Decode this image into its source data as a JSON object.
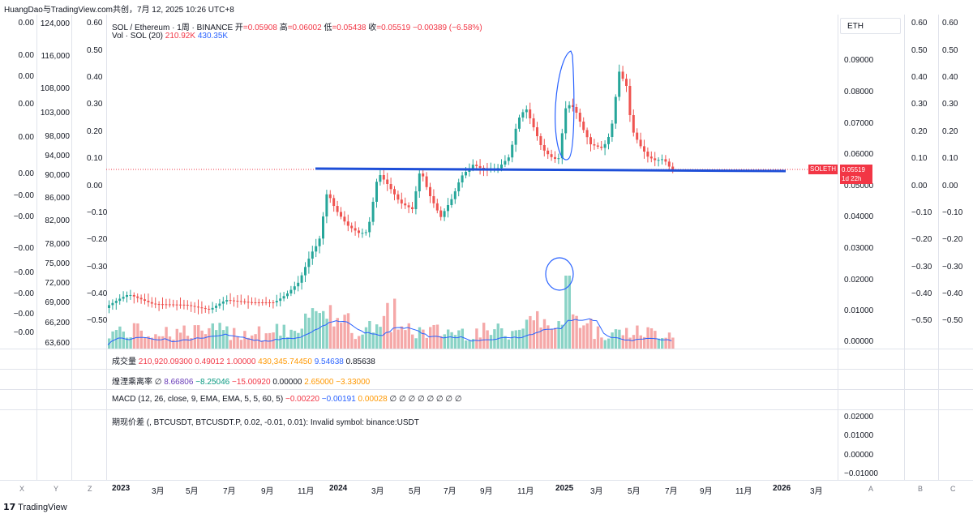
{
  "header": {
    "text": "HuangDao与TradingView.com共创，7月 12, 2025 10:26 UTC+8"
  },
  "legend": {
    "symbol": "SOL / Ethereum · 1周 · BINANCE",
    "o_label": "开",
    "o": "=0.05908",
    "h_label": "高",
    "h": "=0.06002",
    "l_label": "低",
    "l": "=0.05438",
    "c_label": "收",
    "c": "=0.05519",
    "chg": "−0.00389 (−6.58%)",
    "vol_label": "Vol · SOL (20)",
    "vol1": "210.92K",
    "vol2": "430.35K"
  },
  "panes": {
    "volume": {
      "label": "成交量",
      "v1": "210,920.09300",
      "v2": "0.49012",
      "v3": "1.00000",
      "v4": "430,345.74450",
      "v5": "9.54638",
      "v6": "0.85638"
    },
    "osc": {
      "label": "煌湮乘离率 ∅",
      "v1": "8.66806",
      "v2": "−8.25046",
      "v3": "−15.00920",
      "v4": "0.00000",
      "v5": "2.65000",
      "v6": "−3.33000"
    },
    "macd": {
      "label": "MACD (12, 26, close, 9, EMA, EMA, 5, 5, 60, 5)",
      "v1": "−0.00220",
      "v2": "−0.00191",
      "v3": "0.00028",
      "v4": "∅ ∅ ∅ ∅ ∅ ∅ ∅ ∅"
    },
    "spread": {
      "label": "期现价差 (, BTCUSDT, BTCUSDT.P, 0.02, -0.01, 0.01): Invalid symbol: binance:USDT"
    }
  },
  "right_axis": {
    "symbol_button": "ETH",
    "ticks": [
      "0.09000",
      "0.08000",
      "0.07000",
      "0.06000",
      "0.05000",
      "0.04000",
      "0.03000",
      "0.02000",
      "0.01000",
      "0.00000"
    ],
    "price_tag": "SOLETH",
    "price_value": "0.05519",
    "countdown": "1d 22h",
    "spread_ticks": [
      "0.02000",
      "0.01000",
      "0.00000",
      "−0.01000"
    ]
  },
  "right_aux_axis_a": [
    "0.60",
    "0.50",
    "0.40",
    "0.30",
    "0.20",
    "0.10",
    "0.00",
    "−0.10",
    "−0.20",
    "−0.30",
    "−0.40",
    "−0.50"
  ],
  "right_aux_axis_b": [
    "0.60",
    "0.50",
    "0.40",
    "0.30",
    "0.20",
    "0.10",
    "0.00",
    "−0.10",
    "−0.20",
    "−0.30",
    "−0.40",
    "−0.50"
  ],
  "left_axis_z": [
    "0.60",
    "0.50",
    "0.40",
    "0.30",
    "0.20",
    "0.10",
    "0.00",
    "−0.10",
    "−0.20",
    "−0.30",
    "−0.40",
    "−0.50"
  ],
  "left_axis_y": [
    "124,000",
    "116,000",
    "108,000",
    "103,000",
    "98,000",
    "94,000",
    "90,000",
    "86,000",
    "82,000",
    "78,000",
    "75,000",
    "72,000",
    "69,000",
    "66,200",
    "63,600"
  ],
  "left_axis_x": [
    "0.00",
    "0.00",
    "0.00",
    "0.00",
    "0.00",
    "0.00",
    "−0.00",
    "−0.00",
    "−0.00",
    "−0.00",
    "−0.00",
    "−0.00",
    "−0.00"
  ],
  "time_axis": [
    "2023",
    "3月",
    "5月",
    "7月",
    "9月",
    "11月",
    "2024",
    "3月",
    "5月",
    "7月",
    "9月",
    "11月",
    "2025",
    "3月",
    "5月",
    "7月",
    "9月",
    "11月",
    "2026",
    "3月"
  ],
  "axis_letters": {
    "x": "X",
    "y": "Y",
    "z": "Z",
    "a": "A",
    "b": "B",
    "c": "C"
  },
  "footer": {
    "brand": "TradingView"
  },
  "colors": {
    "up": "#26a69a",
    "down": "#ef5350",
    "support": "#1e4fd8",
    "annot": "#2962ff",
    "vol_ma": "#2962ff"
  }
}
